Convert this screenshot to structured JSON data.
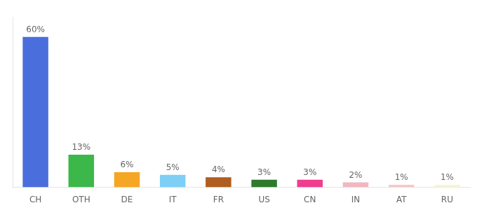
{
  "chart_data": {
    "type": "bar",
    "categories": [
      "CH",
      "OTH",
      "DE",
      "IT",
      "FR",
      "US",
      "CN",
      "IN",
      "AT",
      "RU"
    ],
    "values": [
      60,
      13,
      6,
      5,
      4,
      3,
      3,
      2,
      1,
      1
    ],
    "value_labels": [
      "60%",
      "13%",
      "6%",
      "5%",
      "4%",
      "3%",
      "3%",
      "2%",
      "1%",
      "1%"
    ],
    "colors": [
      "#4a6fdc",
      "#3cb84a",
      "#f5a623",
      "#7ecff5",
      "#b05d1f",
      "#2d7a2d",
      "#f03c8c",
      "#f0b8c0",
      "#f5c8c8",
      "#f5f5d0"
    ],
    "ylim": [
      0,
      68
    ],
    "tick_labels": "x",
    "grid": false,
    "data_labels": true
  }
}
